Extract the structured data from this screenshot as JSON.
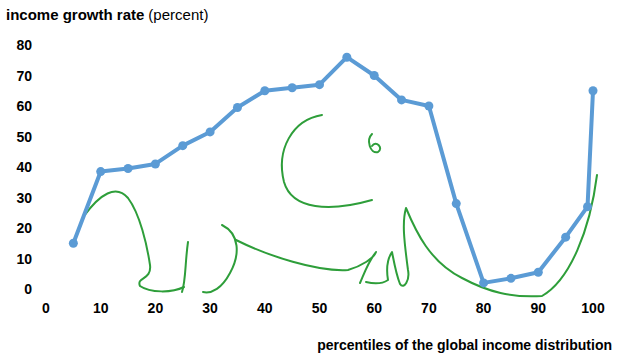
{
  "chart_data": {
    "type": "line",
    "title": "income growth rate",
    "subtitle": "(percent)",
    "x_label": "percentiles of the global income distribution",
    "x": [
      5,
      10,
      15,
      20,
      25,
      30,
      35,
      40,
      45,
      50,
      55,
      60,
      65,
      70,
      75,
      80,
      85,
      90,
      95,
      99,
      100
    ],
    "values": [
      15,
      38.5,
      39.5,
      41,
      47,
      51.5,
      59.5,
      65,
      66,
      67,
      76,
      70,
      62,
      60,
      28,
      2,
      3.5,
      5.5,
      17,
      27,
      65
    ],
    "color": "#5b9bd5",
    "marker": "circle",
    "line_style": "solid",
    "xlim": [
      0,
      100
    ],
    "xticks": [
      0,
      10,
      20,
      30,
      40,
      50,
      60,
      70,
      80,
      90,
      100
    ],
    "ylim": [
      0,
      80
    ],
    "yticks": [
      0,
      10,
      20,
      30,
      40,
      50,
      60,
      70,
      80
    ],
    "grid": false
  }
}
